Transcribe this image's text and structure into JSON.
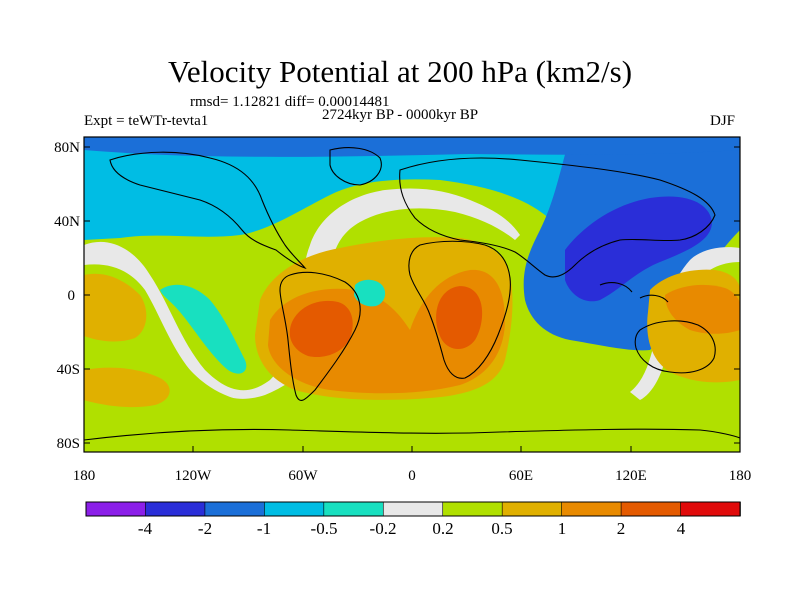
{
  "title": "Velocity Potential at 200 hPa (km2/s)",
  "stats": "rmsd= 1.12821 diff= 0.00014481",
  "period": "2724kyr BP - 0000kyr BP",
  "expt": "Expt = teWTr-tevta1",
  "season": "DJF",
  "y_ticks": [
    "80N",
    "40N",
    "0",
    "40S",
    "80S"
  ],
  "x_ticks": [
    "180",
    "120W",
    "60W",
    "0",
    "60E",
    "120E",
    "180"
  ],
  "colorbar": {
    "colors": [
      "#8b1fe8",
      "#2a2ed8",
      "#1b6fd8",
      "#00bde4",
      "#18e0c0",
      "#e8e8e8",
      "#b0e000",
      "#e0b000",
      "#e88a00",
      "#e45a00",
      "#e00a0a"
    ],
    "labels": [
      "-4",
      "-2",
      "-1",
      "-0.5",
      "-0.2",
      "0.2",
      "0.5",
      "1",
      "2",
      "4"
    ]
  },
  "map_colors": {
    "lt_blue": "#00bde4",
    "med_blue": "#1b6fd8",
    "dk_blue": "#2a2ed8",
    "teal": "#18e0c0",
    "white": "#e8e8e8",
    "yel_green": "#b0e000",
    "gold": "#e0b000",
    "orange": "#e88a00",
    "red_orange": "#e45a00"
  }
}
